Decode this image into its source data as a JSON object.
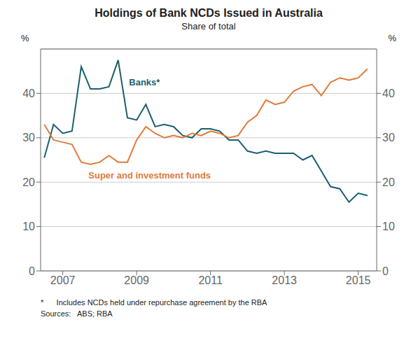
{
  "chart_data": {
    "type": "line",
    "title": "Holdings of Bank NCDs Issued in Australia",
    "subtitle": "Share of total",
    "ylabel": "%",
    "y2label": "%",
    "x": [
      2006.5,
      2006.75,
      2007.0,
      2007.25,
      2007.5,
      2007.75,
      2008.0,
      2008.25,
      2008.5,
      2008.75,
      2009.0,
      2009.25,
      2009.5,
      2009.75,
      2010.0,
      2010.25,
      2010.5,
      2010.75,
      2011.0,
      2011.25,
      2011.5,
      2011.75,
      2012.0,
      2012.25,
      2012.5,
      2012.75,
      2013.0,
      2013.25,
      2013.5,
      2013.75,
      2014.0,
      2014.25,
      2014.5,
      2014.75,
      2015.0,
      2015.25
    ],
    "series": [
      {
        "name": "Banks*",
        "color": "#1a5f6e",
        "values": [
          25.5,
          33.0,
          31.0,
          31.5,
          46.0,
          41.0,
          41.0,
          41.5,
          47.5,
          34.5,
          34.0,
          37.5,
          32.5,
          33.0,
          32.5,
          30.5,
          30.0,
          32.0,
          32.0,
          31.5,
          29.5,
          29.5,
          27.0,
          26.5,
          27.0,
          26.5,
          26.5,
          26.5,
          25.0,
          26.0,
          22.5,
          19.0,
          18.5,
          15.5,
          17.5,
          17.0
        ]
      },
      {
        "name": "Super and investment funds",
        "color": "#e07b3a",
        "values": [
          33.0,
          29.5,
          29.0,
          28.5,
          24.5,
          24.0,
          24.5,
          26.0,
          24.5,
          24.5,
          29.5,
          32.5,
          31.0,
          30.0,
          30.5,
          30.0,
          31.0,
          30.5,
          31.5,
          31.0,
          30.0,
          30.5,
          33.5,
          35.0,
          38.5,
          37.5,
          38.0,
          40.5,
          41.5,
          42.0,
          39.5,
          42.5,
          43.5,
          43.0,
          43.5,
          45.5
        ]
      }
    ],
    "annotations": [
      {
        "text": "Banks*",
        "x": 2008.7,
        "y": 42.5,
        "color": "#1a5f6e"
      },
      {
        "text": "Super and investment funds",
        "x": 2007.6,
        "y": 21.5,
        "color": "#e07b3a"
      }
    ],
    "xlim": [
      2006.4,
      2015.5
    ],
    "xticks": [
      2007,
      2009,
      2011,
      2013,
      2015
    ],
    "ylim": [
      0,
      50
    ],
    "yticks": [
      0,
      10,
      20,
      30,
      40
    ],
    "y2lim": [
      0,
      50
    ],
    "y2ticks": [
      0,
      10,
      20,
      30,
      40
    ],
    "grid": true,
    "footnotes": [
      "*      Includes NCDs held under repurchase agreement by the RBA",
      "Sources:   ABS; RBA"
    ]
  }
}
